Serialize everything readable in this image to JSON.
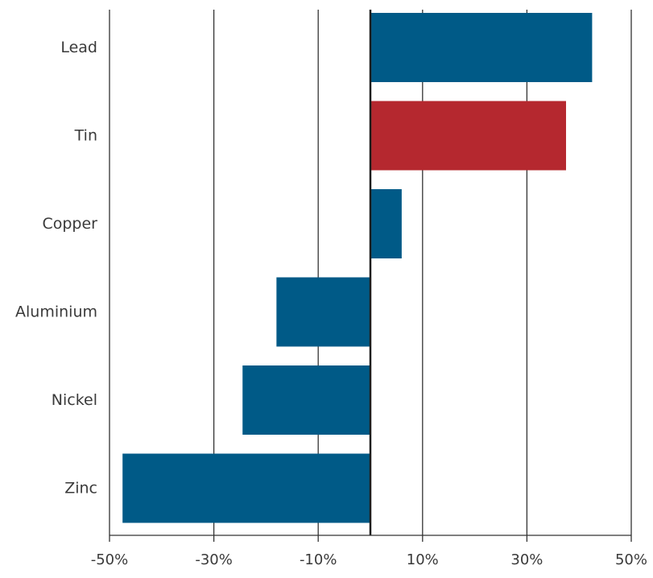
{
  "chart_data": {
    "type": "bar",
    "orientation": "horizontal",
    "title": "",
    "xlabel": "",
    "ylabel": "",
    "categories": [
      "Lead",
      "Tin",
      "Copper",
      "Aluminium",
      "Nickel",
      "Zinc"
    ],
    "values": [
      42.5,
      37.5,
      6,
      -18,
      -24.5,
      -47.5
    ],
    "bar_colors": [
      "#005a87",
      "#b5282f",
      "#005a87",
      "#005a87",
      "#005a87",
      "#005a87"
    ],
    "xlim": [
      -50,
      50
    ],
    "x_ticks": [
      -50,
      -30,
      -10,
      10,
      30,
      50
    ],
    "x_tick_labels": [
      "-50%",
      "-30%",
      "-10%",
      "10%",
      "30%",
      "50%"
    ],
    "grid": "vertical",
    "legend": "none"
  }
}
